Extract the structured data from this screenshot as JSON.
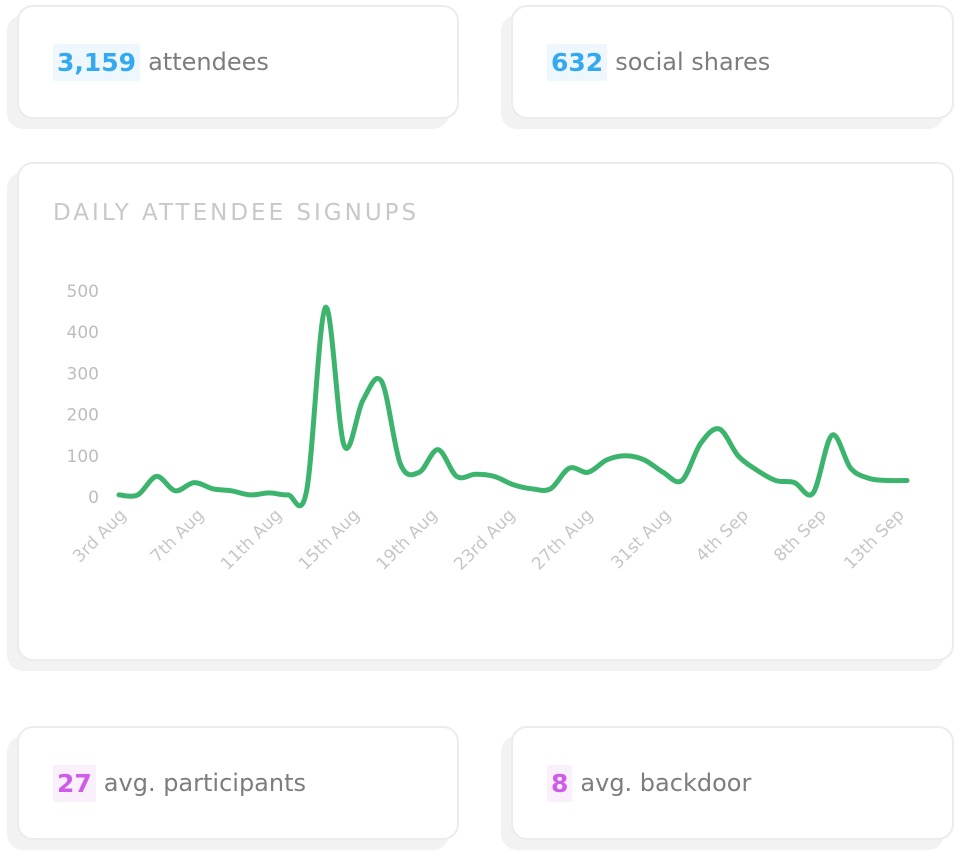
{
  "stats": {
    "attendees": {
      "value": "3,159",
      "label": "attendees"
    },
    "shares": {
      "value": "632",
      "label": "social shares"
    },
    "participants": {
      "value": "27",
      "label": "avg. participants"
    },
    "backdoor": {
      "value": "8",
      "label": "avg. backdoor"
    }
  },
  "colors": {
    "blue": "#35a9f0",
    "purple": "#cf5be9",
    "line": "#3db46d"
  },
  "chart_data": {
    "type": "line",
    "title": "DAILY ATTENDEE SIGNUPS",
    "xlabel": "",
    "ylabel": "",
    "ylim": [
      0,
      500
    ],
    "yticks": [
      0,
      100,
      200,
      300,
      400,
      500
    ],
    "x_tick_labels": [
      "3rd Aug",
      "7th Aug",
      "11th Aug",
      "15th Aug",
      "19th Aug",
      "23rd Aug",
      "27th Aug",
      "31st Aug",
      "4th Sep",
      "8th Sep",
      "13th Sep"
    ],
    "series": [
      {
        "name": "Attendee signups",
        "x": [
          0,
          1,
          2,
          3,
          4,
          5,
          6,
          7,
          8,
          9,
          10,
          11,
          12,
          13,
          14,
          15,
          16,
          17,
          18,
          19,
          20,
          21,
          22,
          23,
          24,
          25,
          26,
          27,
          28,
          29,
          30,
          31,
          32,
          33,
          34,
          35,
          36,
          37,
          38,
          39,
          40,
          41,
          42
        ],
        "values": [
          5,
          5,
          50,
          15,
          35,
          20,
          15,
          5,
          10,
          5,
          15,
          460,
          125,
          235,
          280,
          80,
          60,
          115,
          50,
          55,
          50,
          30,
          20,
          20,
          70,
          60,
          90,
          100,
          90,
          60,
          40,
          130,
          165,
          100,
          65,
          40,
          35,
          10,
          150,
          70,
          45,
          40,
          40
        ]
      }
    ]
  }
}
